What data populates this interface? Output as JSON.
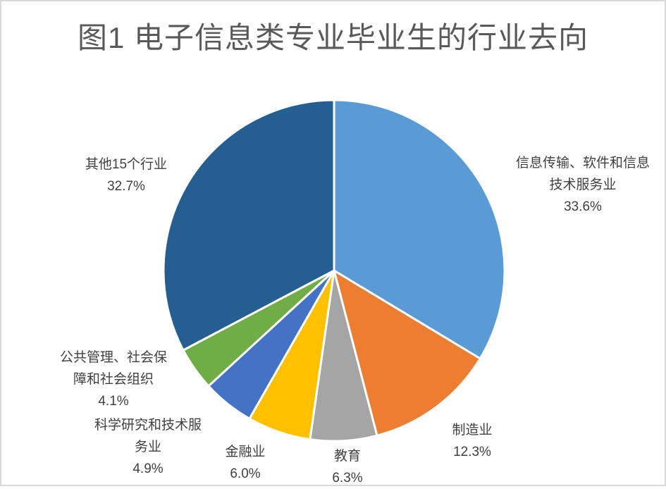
{
  "chart_data": {
    "type": "pie",
    "title": "图1 电子信息类专业毕业生的行业去向",
    "unit": "percent",
    "start_angle_deg": 0,
    "direction": "clockwise",
    "legend": "none",
    "labels_position": "outside",
    "segments": [
      {
        "name": "信息传输、软件和信息技术服务业",
        "value": 33.6,
        "pct_label": "33.6%",
        "color": "#5B9BD5",
        "lines": [
          "信息传输、软件和信息",
          "技术服务业",
          "33.6%"
        ]
      },
      {
        "name": "制造业",
        "value": 12.3,
        "pct_label": "12.3%",
        "color": "#ED7D31",
        "lines": [
          "制造业",
          "12.3%"
        ]
      },
      {
        "name": "教育",
        "value": 6.3,
        "pct_label": "6.3%",
        "color": "#A5A5A5",
        "lines": [
          "教育",
          "6.3%"
        ]
      },
      {
        "name": "金融业",
        "value": 6.0,
        "pct_label": "6.0%",
        "color": "#FFC000",
        "lines": [
          "金融业",
          "6.0%"
        ]
      },
      {
        "name": "科学研究和技术服务业",
        "value": 4.9,
        "pct_label": "4.9%",
        "color": "#4472C4",
        "lines": [
          "科学研究和技术服",
          "务业",
          "4.9%"
        ]
      },
      {
        "name": "公共管理、社会保障和社会组织",
        "value": 4.1,
        "pct_label": "4.1%",
        "color": "#70AD47",
        "lines": [
          "公共管理、社会保",
          "障和社会组织",
          "4.1%"
        ]
      },
      {
        "name": "其他15个行业",
        "value": 32.7,
        "pct_label": "32.7%",
        "color": "#255E91",
        "lines": [
          "其他15个行业",
          "32.7%"
        ]
      }
    ],
    "colors": {
      "title_text": "#595959",
      "label_text": "#404040",
      "slice_stroke": "#FFFFFF",
      "frame_border": "#D9D9D9",
      "background": "#FFFFFF"
    }
  }
}
